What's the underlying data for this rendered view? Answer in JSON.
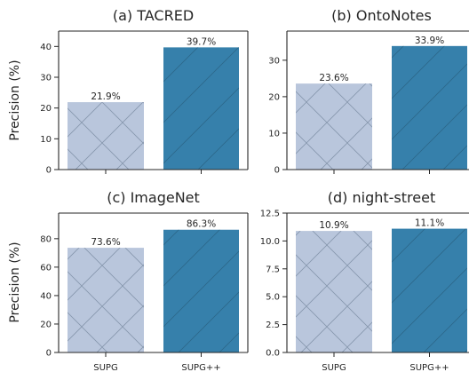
{
  "figure": {
    "ylabel": "Precision (%)",
    "categories": [
      "SUPG",
      "SUPG++"
    ],
    "colors": {
      "SUPG": "#b9c6dc",
      "SUPG++": "#3680ab",
      "hatch": "#5d6f86"
    }
  },
  "chart_data": [
    {
      "type": "bar",
      "title": "(a) TACRED",
      "categories": [
        "SUPG",
        "SUPG++"
      ],
      "values": [
        21.9,
        39.7
      ],
      "data_labels": [
        "21.9%",
        "39.7%"
      ],
      "ylabel": "Precision (%)",
      "ylim": [
        0,
        45
      ],
      "yticks": [
        0,
        10,
        20,
        30,
        40
      ],
      "ytick_labels": [
        "0",
        "10",
        "20",
        "30",
        "40"
      ]
    },
    {
      "type": "bar",
      "title": "(b) OntoNotes",
      "categories": [
        "SUPG",
        "SUPG++"
      ],
      "values": [
        23.6,
        33.9
      ],
      "data_labels": [
        "23.6%",
        "33.9%"
      ],
      "ylabel": "",
      "ylim": [
        0,
        38
      ],
      "yticks": [
        0,
        10,
        20,
        30
      ],
      "ytick_labels": [
        "0",
        "10",
        "20",
        "30"
      ]
    },
    {
      "type": "bar",
      "title": "(c) ImageNet",
      "categories": [
        "SUPG",
        "SUPG++"
      ],
      "values": [
        73.6,
        86.3
      ],
      "data_labels": [
        "73.6%",
        "86.3%"
      ],
      "ylabel": "Precision (%)",
      "ylim": [
        0,
        98
      ],
      "yticks": [
        0,
        20,
        40,
        60,
        80
      ],
      "ytick_labels": [
        "0",
        "20",
        "40",
        "60",
        "80"
      ]
    },
    {
      "type": "bar",
      "title": "(d) night-street",
      "categories": [
        "SUPG",
        "SUPG++"
      ],
      "values": [
        10.9,
        11.1
      ],
      "data_labels": [
        "10.9%",
        "11.1%"
      ],
      "ylabel": "",
      "ylim": [
        0,
        12.5
      ],
      "yticks": [
        0,
        2.5,
        5,
        7.5,
        10,
        12.5
      ],
      "ytick_labels": [
        "0.0",
        "2.5",
        "5.0",
        "7.5",
        "10.0",
        "12.5"
      ]
    }
  ]
}
